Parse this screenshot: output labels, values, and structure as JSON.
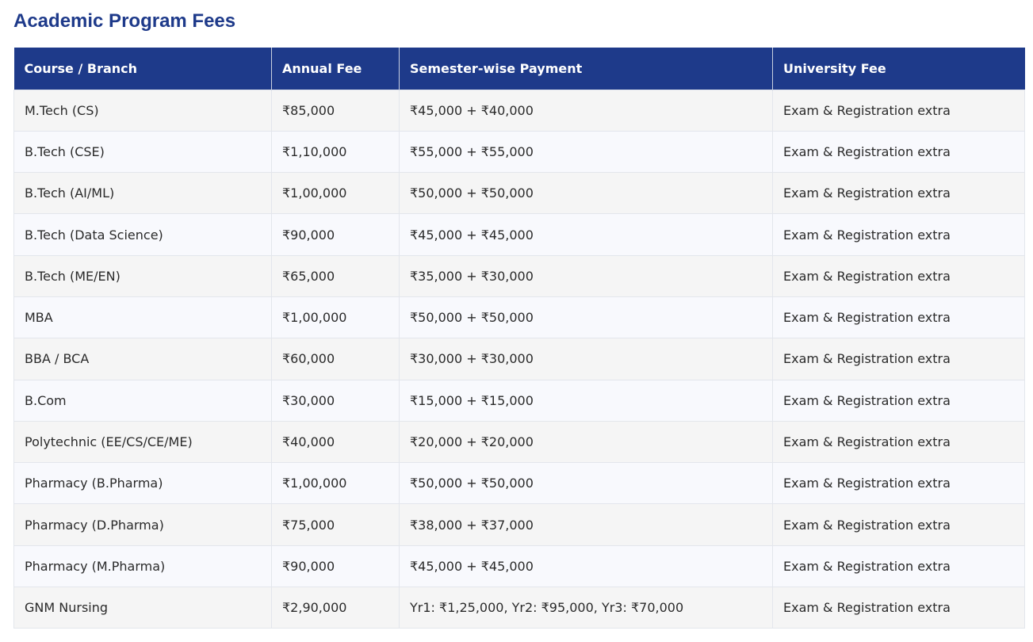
{
  "page_title": "Academic Program Fees",
  "table": {
    "headers": [
      "Course / Branch",
      "Annual Fee",
      "Semester-wise Payment",
      "University Fee"
    ],
    "rows": [
      [
        "M.Tech (CS)",
        "₹85,000",
        "₹45,000 + ₹40,000",
        "Exam & Registration extra"
      ],
      [
        "B.Tech (CSE)",
        "₹1,10,000",
        "₹55,000 + ₹55,000",
        "Exam & Registration extra"
      ],
      [
        "B.Tech (AI/ML)",
        "₹1,00,000",
        "₹50,000 + ₹50,000",
        "Exam & Registration extra"
      ],
      [
        "B.Tech (Data Science)",
        "₹90,000",
        "₹45,000 + ₹45,000",
        "Exam & Registration extra"
      ],
      [
        "B.Tech (ME/EN)",
        "₹65,000",
        "₹35,000 + ₹30,000",
        "Exam & Registration extra"
      ],
      [
        "MBA",
        "₹1,00,000",
        "₹50,000 + ₹50,000",
        "Exam & Registration extra"
      ],
      [
        "BBA / BCA",
        "₹60,000",
        "₹30,000 + ₹30,000",
        "Exam & Registration extra"
      ],
      [
        "B.Com",
        "₹30,000",
        "₹15,000 + ₹15,000",
        "Exam & Registration extra"
      ],
      [
        "Polytechnic (EE/CS/CE/ME)",
        "₹40,000",
        "₹20,000 + ₹20,000",
        "Exam & Registration extra"
      ],
      [
        "Pharmacy (B.Pharma)",
        "₹1,00,000",
        "₹50,000 + ₹50,000",
        "Exam & Registration extra"
      ],
      [
        "Pharmacy (D.Pharma)",
        "₹75,000",
        "₹38,000 + ₹37,000",
        "Exam & Registration extra"
      ],
      [
        "Pharmacy (M.Pharma)",
        "₹90,000",
        "₹45,000 + ₹45,000",
        "Exam & Registration extra"
      ],
      [
        "GNM Nursing",
        "₹2,90,000",
        "Yr1: ₹1,25,000, Yr2: ₹95,000, Yr3: ₹70,000",
        "Exam & Registration extra"
      ]
    ]
  },
  "colors": {
    "accent": "#1e3a8a",
    "header_text": "#ffffff",
    "row_odd": "#f5f5f5",
    "row_even": "#f8f9fd"
  }
}
